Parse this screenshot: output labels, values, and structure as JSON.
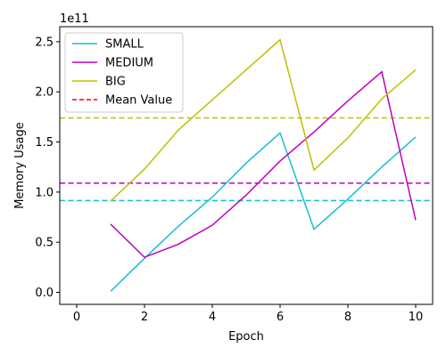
{
  "chart_data": {
    "type": "line",
    "xlabel": "Epoch",
    "ylabel": "Memory Usage",
    "offset_text": "1e11",
    "xlim": [
      -0.5,
      10.5
    ],
    "ylim": [
      -0.12,
      2.65
    ],
    "x_ticks": [
      0,
      2,
      4,
      6,
      8,
      10
    ],
    "x_tick_labels": [
      "0",
      "2",
      "4",
      "6",
      "8",
      "10"
    ],
    "y_ticks": [
      0.0,
      0.5,
      1.0,
      1.5,
      2.0,
      2.5
    ],
    "y_tick_labels": [
      "0.0",
      "0.5",
      "1.0",
      "1.5",
      "2.0",
      "2.5"
    ],
    "grid": false,
    "legend_position": "top-left",
    "x": [
      1,
      2,
      3,
      4,
      5,
      6,
      7,
      8,
      9,
      10
    ],
    "series": [
      {
        "name": "SMALL",
        "color": "#17becf",
        "values": [
          0.01,
          0.34,
          0.66,
          0.95,
          1.29,
          1.59,
          0.63,
          0.93,
          1.25,
          1.55
        ],
        "mean": 0.915
      },
      {
        "name": "MEDIUM",
        "color": "#bf00bf",
        "values": [
          0.68,
          0.35,
          0.48,
          0.67,
          0.97,
          1.31,
          1.6,
          1.91,
          2.2,
          0.72
        ],
        "mean": 1.09
      },
      {
        "name": "BIG",
        "color": "#bfbf00",
        "values": [
          0.91,
          1.23,
          1.62,
          1.92,
          2.22,
          2.52,
          1.22,
          1.54,
          1.93,
          2.22
        ],
        "mean": 1.74
      }
    ],
    "mean_legend": {
      "label": "Mean Value",
      "color": "#ff0000"
    }
  }
}
